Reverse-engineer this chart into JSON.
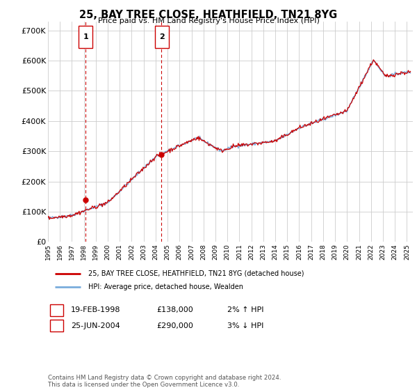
{
  "title": "25, BAY TREE CLOSE, HEATHFIELD, TN21 8YG",
  "subtitle": "Price paid vs. HM Land Registry's House Price Index (HPI)",
  "ylabel_ticks": [
    "£0",
    "£100K",
    "£200K",
    "£300K",
    "£400K",
    "£500K",
    "£600K",
    "£700K"
  ],
  "ytick_vals": [
    0,
    100000,
    200000,
    300000,
    400000,
    500000,
    600000,
    700000
  ],
  "ylim": [
    0,
    730000
  ],
  "xlim_start": 1995.0,
  "xlim_end": 2025.5,
  "line_color_red": "#cc0000",
  "line_color_blue": "#7aacdc",
  "background_color": "#ffffff",
  "grid_color": "#cccccc",
  "sale1": {
    "label": "1",
    "year": 1998.13,
    "price": 138000,
    "date": "19-FEB-1998",
    "hpi_pct": "2%",
    "hpi_dir": "↑"
  },
  "sale2": {
    "label": "2",
    "year": 2004.48,
    "price": 290000,
    "date": "25-JUN-2004",
    "hpi_pct": "3%",
    "hpi_dir": "↓"
  },
  "legend_line1": "25, BAY TREE CLOSE, HEATHFIELD, TN21 8YG (detached house)",
  "legend_line2": "HPI: Average price, detached house, Wealden",
  "footer": "Contains HM Land Registry data © Crown copyright and database right 2024.\nThis data is licensed under the Open Government Licence v3.0.",
  "xtick_years": [
    1995,
    1996,
    1997,
    1998,
    1999,
    2000,
    2001,
    2002,
    2003,
    2004,
    2005,
    2006,
    2007,
    2008,
    2009,
    2010,
    2011,
    2012,
    2013,
    2014,
    2015,
    2016,
    2017,
    2018,
    2019,
    2020,
    2021,
    2022,
    2023,
    2024,
    2025
  ]
}
